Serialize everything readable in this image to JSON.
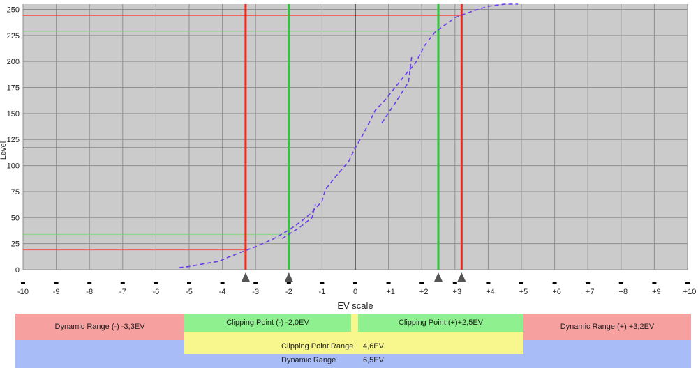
{
  "chart_data": {
    "type": "line",
    "title": "",
    "xlabel": "EV scale",
    "ylabel": "Level",
    "xlim": [
      -10,
      10
    ],
    "ylim": [
      0,
      255
    ],
    "x_ticks": [
      "-10",
      "-9",
      "-8",
      "-7",
      "-6",
      "-5",
      "-4",
      "-3",
      "-2",
      "-1",
      "0",
      "+1",
      "+2",
      "+3",
      "+4",
      "+5",
      "+6",
      "+7",
      "+8",
      "+9",
      "+10"
    ],
    "y_ticks": [
      "0",
      "25",
      "50",
      "75",
      "100",
      "125",
      "150",
      "175",
      "200",
      "225",
      "250"
    ],
    "grid": true,
    "series": [
      {
        "color": "#6a3cf0",
        "style": "dashed",
        "points": [
          [
            -5.3,
            2
          ],
          [
            -5,
            3
          ],
          [
            -4.5,
            6
          ],
          [
            -4.1,
            8
          ],
          [
            -3.9,
            11
          ],
          [
            -3.5,
            16
          ],
          [
            -3.0,
            22
          ],
          [
            -2.5,
            29
          ],
          [
            -2.0,
            38
          ],
          [
            -1.6,
            47
          ],
          [
            -1.3,
            55
          ],
          [
            -1.0,
            66
          ],
          [
            -0.9,
            77
          ],
          [
            -0.6,
            89
          ],
          [
            -0.2,
            104
          ],
          [
            0.0,
            117
          ],
          [
            0.2,
            128
          ],
          [
            0.4,
            140
          ],
          [
            0.6,
            153
          ],
          [
            0.9,
            163
          ],
          [
            1.2,
            175
          ],
          [
            1.5,
            187
          ],
          [
            1.8,
            198
          ],
          [
            2.1,
            216
          ],
          [
            2.4,
            228
          ],
          [
            3.0,
            242
          ],
          [
            3.5,
            248
          ],
          [
            4.0,
            253
          ],
          [
            4.5,
            255
          ],
          [
            4.9,
            255
          ]
        ]
      },
      {
        "color": "#6a3cf0",
        "style": "dashed",
        "points": [
          [
            -2.2,
            30
          ],
          [
            -1.7,
            40
          ],
          [
            -1.3,
            50
          ],
          [
            -1.2,
            63
          ]
        ]
      },
      {
        "color": "#6a3cf0",
        "style": "dashed",
        "points": [
          [
            0.8,
            141
          ],
          [
            1.2,
            160
          ],
          [
            1.6,
            180
          ],
          [
            1.7,
            205
          ]
        ]
      }
    ],
    "markers": [
      {
        "x": -3.3,
        "color": "#ee2a1e"
      },
      {
        "x": -2.0,
        "color": "#2dc83a"
      },
      {
        "x": 2.5,
        "color": "#2dc83a"
      },
      {
        "x": 3.2,
        "color": "#ee2a1e"
      }
    ],
    "reference_levels": [
      {
        "level": 244,
        "x_end": 3.2,
        "color": "#ee5a50"
      },
      {
        "level": 229,
        "x_end": 2.5,
        "color": "#7fd67a"
      },
      {
        "level": 34,
        "x_end": -2.0,
        "color": "#7fd67a"
      },
      {
        "level": 19,
        "x_end": -3.3,
        "color": "#ee5a50"
      },
      {
        "level": 117,
        "x_end": 0.0,
        "color": "#000000"
      }
    ],
    "zero_line_x": 0,
    "colors": {
      "plot_bg": "#cbcbcb",
      "grid": "#8f8f8f",
      "triangle": "#555555"
    }
  },
  "summary": {
    "dynamic_range_neg": "Dynamic Range (-) -3,3EV",
    "clipping_neg": "Clipping Point (-) -2,0EV",
    "clipping_pos": "Clipping Point (+)+2,5EV",
    "dynamic_range_pos": "Dynamic Range (+) +3,2EV",
    "clipping_range_label": "Clipping Point Range",
    "clipping_range_value": "4,6EV",
    "dynamic_range_label": "Dynamic Range",
    "dynamic_range_value": "6,5EV",
    "colors": {
      "red": "#f7a0a0",
      "green": "#8ef08e",
      "yellow": "#f7f78e",
      "blue": "#a8bdf7"
    }
  }
}
